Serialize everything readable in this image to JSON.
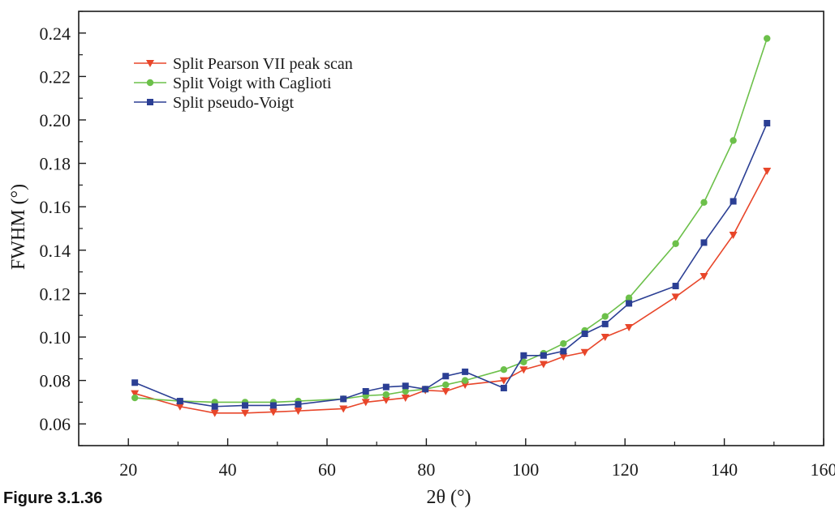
{
  "caption": "Figure 3.1.36",
  "chart_data": {
    "type": "line",
    "title": "",
    "xlabel": "2θ (°)",
    "ylabel": "FWHM (°)",
    "xlim": [
      10,
      160
    ],
    "ylim": [
      0.05,
      0.25
    ],
    "xticks": [
      20,
      40,
      60,
      80,
      100,
      120,
      140,
      160
    ],
    "xtick_labels": [
      "20",
      "40",
      "60",
      "80",
      "100",
      "120",
      "140",
      "160"
    ],
    "yticks": [
      0.06,
      0.08,
      0.1,
      0.12,
      0.14,
      0.16,
      0.18,
      0.2,
      0.22,
      0.24
    ],
    "ytick_labels": [
      "0.06",
      "0.08",
      "0.10",
      "0.12",
      "0.14",
      "0.16",
      "0.18",
      "0.20",
      "0.22",
      "0.24"
    ],
    "grid": false,
    "legend": "top-left",
    "series": [
      {
        "name": "Split Pearson VII peak scan",
        "color": "#e8462a",
        "marker": "triangle-down",
        "x": [
          21.3,
          30.4,
          37.4,
          43.5,
          49.2,
          54.2,
          63.3,
          67.8,
          71.9,
          75.8,
          79.8,
          83.9,
          87.8,
          95.6,
          99.6,
          103.6,
          107.6,
          111.9,
          116.0,
          120.8,
          130.2,
          135.9,
          141.8,
          148.6
        ],
        "y": [
          0.074,
          0.068,
          0.065,
          0.065,
          0.0655,
          0.066,
          0.067,
          0.07,
          0.071,
          0.072,
          0.0755,
          0.075,
          0.078,
          0.08,
          0.085,
          0.0875,
          0.091,
          0.093,
          0.1,
          0.1045,
          0.1185,
          0.128,
          0.147,
          0.1765
        ]
      },
      {
        "name": "Split Voigt with Caglioti",
        "color": "#6cc04a",
        "marker": "circle",
        "x": [
          21.3,
          30.4,
          37.4,
          43.5,
          49.2,
          54.2,
          63.3,
          67.8,
          71.9,
          75.8,
          79.8,
          83.9,
          87.8,
          95.6,
          99.6,
          103.6,
          107.6,
          111.9,
          116.0,
          120.8,
          130.2,
          135.9,
          141.8,
          148.6
        ],
        "y": [
          0.072,
          0.0705,
          0.07,
          0.07,
          0.07,
          0.0705,
          0.0715,
          0.073,
          0.0735,
          0.075,
          0.076,
          0.078,
          0.08,
          0.085,
          0.0885,
          0.0925,
          0.097,
          0.103,
          0.1095,
          0.118,
          0.143,
          0.162,
          0.1905,
          0.2375
        ]
      },
      {
        "name": "Split pseudo-Voigt",
        "color": "#2b3f94",
        "marker": "square",
        "x": [
          21.3,
          30.4,
          37.4,
          43.5,
          49.2,
          54.2,
          63.3,
          67.8,
          71.9,
          75.8,
          79.8,
          83.9,
          87.8,
          95.6,
          99.6,
          103.6,
          107.6,
          111.9,
          116.0,
          120.8,
          130.2,
          135.9,
          141.8,
          148.6
        ],
        "y": [
          0.079,
          0.0705,
          0.068,
          0.0685,
          0.0685,
          0.069,
          0.0715,
          0.075,
          0.077,
          0.0775,
          0.076,
          0.082,
          0.084,
          0.0765,
          0.0915,
          0.0915,
          0.0935,
          0.1015,
          0.106,
          0.1155,
          0.1235,
          0.1435,
          0.1625,
          0.1985
        ]
      }
    ]
  }
}
